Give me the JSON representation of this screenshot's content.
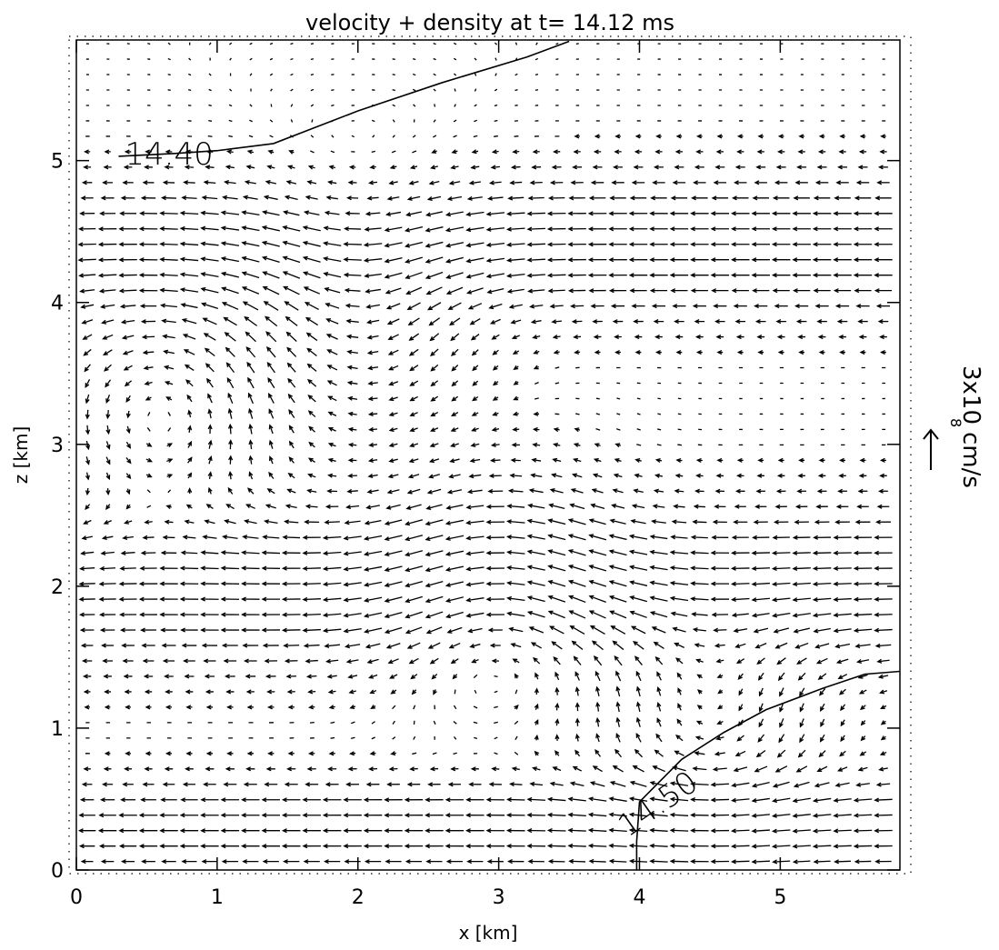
{
  "chart_data": {
    "type": "vector_field",
    "title": "velocity + density at t=   14.12 ms",
    "xlabel": "x [km]",
    "ylabel": "z [km]",
    "xlim": [
      0,
      5.85
    ],
    "ylim": [
      0,
      5.85
    ],
    "xticks": [
      "0",
      "1",
      "2",
      "3",
      "4",
      "5"
    ],
    "yticks": [
      "0",
      "1",
      "2",
      "3",
      "4",
      "5"
    ],
    "reference_vector": {
      "label_mantissa": "3x10",
      "label_exponent": "8",
      "label_unit": "cm/s",
      "direction": "left",
      "speed": 300000000
    },
    "contours": [
      {
        "label": "14.40",
        "points": [
          [
            0.3,
            5.03
          ],
          [
            0.7,
            5.05
          ],
          [
            1.0,
            5.07
          ],
          [
            1.4,
            5.12
          ],
          [
            2.0,
            5.35
          ],
          [
            2.6,
            5.55
          ],
          [
            3.2,
            5.73
          ],
          [
            3.5,
            5.84
          ]
        ]
      },
      {
        "label": "14.50",
        "points": [
          [
            3.98,
            0.0
          ],
          [
            3.98,
            0.2
          ],
          [
            4.0,
            0.48
          ],
          [
            4.3,
            0.78
          ],
          [
            4.6,
            0.97
          ],
          [
            4.9,
            1.13
          ],
          [
            5.3,
            1.28
          ],
          [
            5.6,
            1.38
          ],
          [
            5.85,
            1.4
          ]
        ]
      }
    ],
    "flow_features": [
      {
        "kind": "leftward_jet",
        "z_center": 2.0,
        "z_halfwidth": 0.6
      },
      {
        "kind": "leftward_jet",
        "z_center": 4.4,
        "z_halfwidth": 0.5
      },
      {
        "kind": "leftward_jet",
        "z_center": 0.3,
        "z_halfwidth": 0.35
      },
      {
        "kind": "vortex",
        "x": 0.6,
        "z": 3.2,
        "sense": "ccw"
      },
      {
        "kind": "vortex",
        "x": 2.0,
        "z": 4.0,
        "sense": "cw"
      },
      {
        "kind": "vortex",
        "x": 3.0,
        "z": 2.0,
        "sense": "ccw"
      },
      {
        "kind": "vortex",
        "x": 4.5,
        "z": 1.1,
        "sense": "cw"
      }
    ],
    "grid": false,
    "dotted_frame": true
  }
}
